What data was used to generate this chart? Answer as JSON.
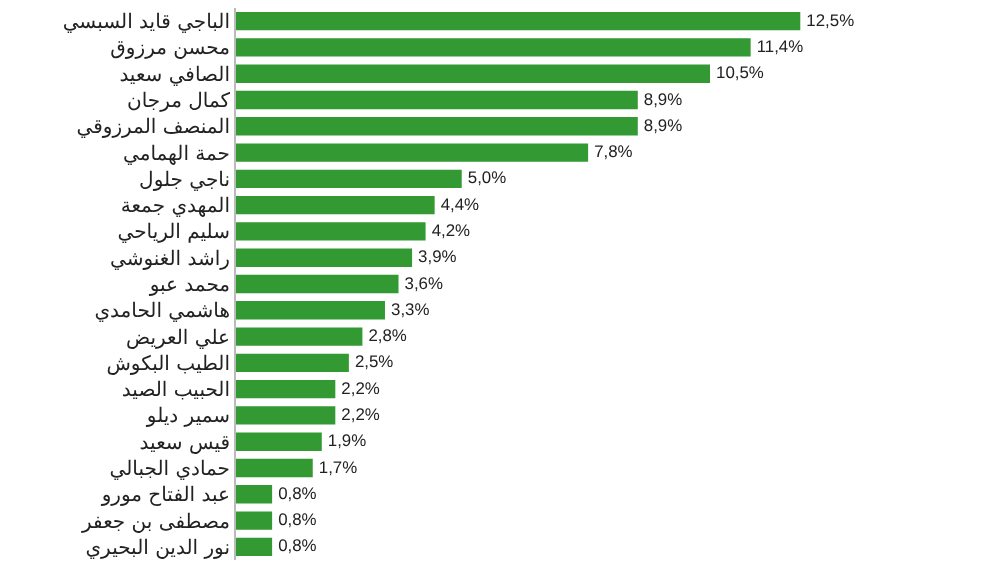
{
  "chart_data": {
    "type": "bar",
    "orientation": "horizontal",
    "categories": [
      "الباجي قايد السبسي",
      "محسن مرزوق",
      "الصافي سعيد",
      "كمال مرجان",
      "المنصف المرزوقي",
      "حمة الهمامي",
      "ناجي جلول",
      "المهدي جمعة",
      "سليم الرياحي",
      "راشد الغنوشي",
      "محمد عبو",
      "هاشمي الحامدي",
      "علي العريض",
      "الطيب البكوش",
      "الحبيب الصيد",
      "سمير ديلو",
      "قيس سعيد",
      "حمادي الجبالي",
      "عبد الفتاح مورو",
      "مصطفى بن جعفر",
      "نور الدين البحيري"
    ],
    "values": [
      12.5,
      11.4,
      10.5,
      8.9,
      8.9,
      7.8,
      5.0,
      4.4,
      4.2,
      3.9,
      3.6,
      3.3,
      2.8,
      2.5,
      2.2,
      2.2,
      1.9,
      1.7,
      0.8,
      0.8,
      0.8
    ],
    "value_labels": [
      "12,5%",
      "11,4%",
      "10,5%",
      "8,9%",
      "8,9%",
      "7,8%",
      "5,0%",
      "4,4%",
      "4,2%",
      "3,9%",
      "3,6%",
      "3,3%",
      "2,8%",
      "2,5%",
      "2,2%",
      "2,2%",
      "1,9%",
      "1,7%",
      "0,8%",
      "0,8%",
      "0,8%"
    ],
    "color": "#339933",
    "tick_labels": "y"
  }
}
